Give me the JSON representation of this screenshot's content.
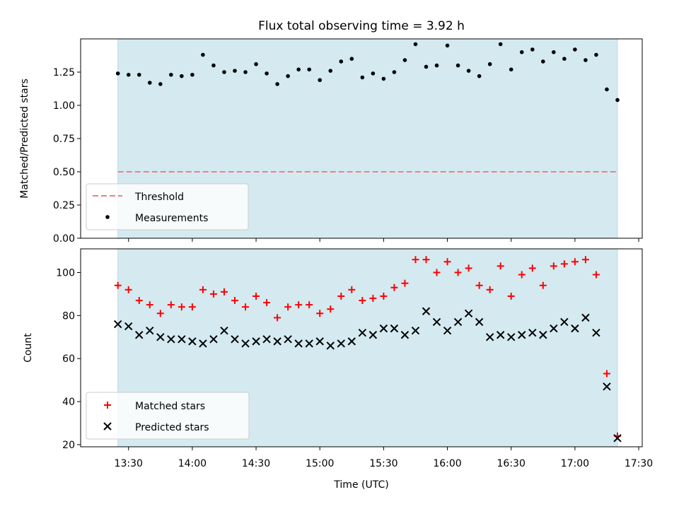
{
  "chart_data": [
    {
      "type": "scatter",
      "title": "Flux total observing time = 3.92 h",
      "xlabel": "",
      "ylabel": "Matched/Predicted stars",
      "ylim": [
        0,
        1.5
      ],
      "yticks": [
        "0.00",
        "0.25",
        "0.50",
        "0.75",
        "1.00",
        "1.25"
      ],
      "shaded_span": [
        "13:25",
        "17:20"
      ],
      "shade_color": "#d4eaf0",
      "threshold": {
        "name": "Threshold",
        "value": 0.5,
        "color": "#f08080",
        "style": "dashed"
      },
      "series": [
        {
          "name": "Measurements",
          "marker": "dot",
          "color": "#000000",
          "x": [
            "13:25",
            "13:30",
            "13:35",
            "13:40",
            "13:45",
            "13:50",
            "13:55",
            "14:00",
            "14:05",
            "14:10",
            "14:15",
            "14:20",
            "14:25",
            "14:30",
            "14:35",
            "14:40",
            "14:45",
            "14:50",
            "14:55",
            "15:00",
            "15:05",
            "15:10",
            "15:15",
            "15:20",
            "15:25",
            "15:30",
            "15:35",
            "15:40",
            "15:45",
            "15:50",
            "15:55",
            "16:00",
            "16:05",
            "16:10",
            "16:15",
            "16:20",
            "16:25",
            "16:30",
            "16:35",
            "16:40",
            "16:45",
            "16:50",
            "16:55",
            "17:00",
            "17:05",
            "17:10",
            "17:15",
            "17:20"
          ],
          "y": [
            1.24,
            1.23,
            1.23,
            1.17,
            1.16,
            1.23,
            1.22,
            1.23,
            1.38,
            1.3,
            1.25,
            1.26,
            1.25,
            1.31,
            1.24,
            1.16,
            1.22,
            1.27,
            1.27,
            1.19,
            1.26,
            1.33,
            1.35,
            1.21,
            1.24,
            1.2,
            1.25,
            1.34,
            1.46,
            1.29,
            1.3,
            1.45,
            1.3,
            1.26,
            1.22,
            1.31,
            1.46,
            1.27,
            1.4,
            1.42,
            1.33,
            1.4,
            1.35,
            1.42,
            1.34,
            1.38,
            1.12,
            1.04
          ]
        }
      ],
      "legend": {
        "position": "lower-left",
        "entries": [
          "Threshold",
          "Measurements"
        ]
      }
    },
    {
      "type": "scatter",
      "xlabel": "Time (UTC)",
      "ylabel": "Count",
      "ylim": [
        19,
        111
      ],
      "yticks": [
        "20",
        "40",
        "60",
        "80",
        "100"
      ],
      "xticks": [
        "13:30",
        "14:00",
        "14:30",
        "15:00",
        "15:30",
        "16:00",
        "16:30",
        "17:00",
        "17:30"
      ],
      "shaded_span": [
        "13:25",
        "17:20"
      ],
      "shade_color": "#d4eaf0",
      "series": [
        {
          "name": "Matched stars",
          "marker": "plus",
          "color": "#ff0000",
          "x": [
            "13:25",
            "13:30",
            "13:35",
            "13:40",
            "13:45",
            "13:50",
            "13:55",
            "14:00",
            "14:05",
            "14:10",
            "14:15",
            "14:20",
            "14:25",
            "14:30",
            "14:35",
            "14:40",
            "14:45",
            "14:50",
            "14:55",
            "15:00",
            "15:05",
            "15:10",
            "15:15",
            "15:20",
            "15:25",
            "15:30",
            "15:35",
            "15:40",
            "15:45",
            "15:50",
            "15:55",
            "16:00",
            "16:05",
            "16:10",
            "16:15",
            "16:20",
            "16:25",
            "16:30",
            "16:35",
            "16:40",
            "16:45",
            "16:50",
            "16:55",
            "17:00",
            "17:05",
            "17:10",
            "17:15",
            "17:20"
          ],
          "y": [
            94,
            92,
            87,
            85,
            81,
            85,
            84,
            84,
            92,
            90,
            91,
            87,
            84,
            89,
            86,
            79,
            84,
            85,
            85,
            81,
            83,
            89,
            92,
            87,
            88,
            89,
            93,
            95,
            106,
            106,
            100,
            105,
            100,
            102,
            94,
            92,
            103,
            89,
            99,
            102,
            94,
            103,
            104,
            105,
            106,
            99,
            53,
            24
          ]
        },
        {
          "name": "Predicted stars",
          "marker": "x",
          "color": "#000000",
          "x": [
            "13:25",
            "13:30",
            "13:35",
            "13:40",
            "13:45",
            "13:50",
            "13:55",
            "14:00",
            "14:05",
            "14:10",
            "14:15",
            "14:20",
            "14:25",
            "14:30",
            "14:35",
            "14:40",
            "14:45",
            "14:50",
            "14:55",
            "15:00",
            "15:05",
            "15:10",
            "15:15",
            "15:20",
            "15:25",
            "15:30",
            "15:35",
            "15:40",
            "15:45",
            "15:50",
            "15:55",
            "16:00",
            "16:05",
            "16:10",
            "16:15",
            "16:20",
            "16:25",
            "16:30",
            "16:35",
            "16:40",
            "16:45",
            "16:50",
            "16:55",
            "17:00",
            "17:05",
            "17:10",
            "17:15",
            "17:20"
          ],
          "y": [
            76,
            75,
            71,
            73,
            70,
            69,
            69,
            68,
            67,
            69,
            73,
            69,
            67,
            68,
            69,
            68,
            69,
            67,
            67,
            68,
            66,
            67,
            68,
            72,
            71,
            74,
            74,
            71,
            73,
            82,
            77,
            73,
            77,
            81,
            77,
            70,
            71,
            70,
            71,
            72,
            71,
            74,
            77,
            74,
            79,
            72,
            47,
            23
          ]
        }
      ],
      "legend": {
        "position": "lower-left",
        "entries": [
          "Matched stars",
          "Predicted stars"
        ]
      }
    }
  ]
}
